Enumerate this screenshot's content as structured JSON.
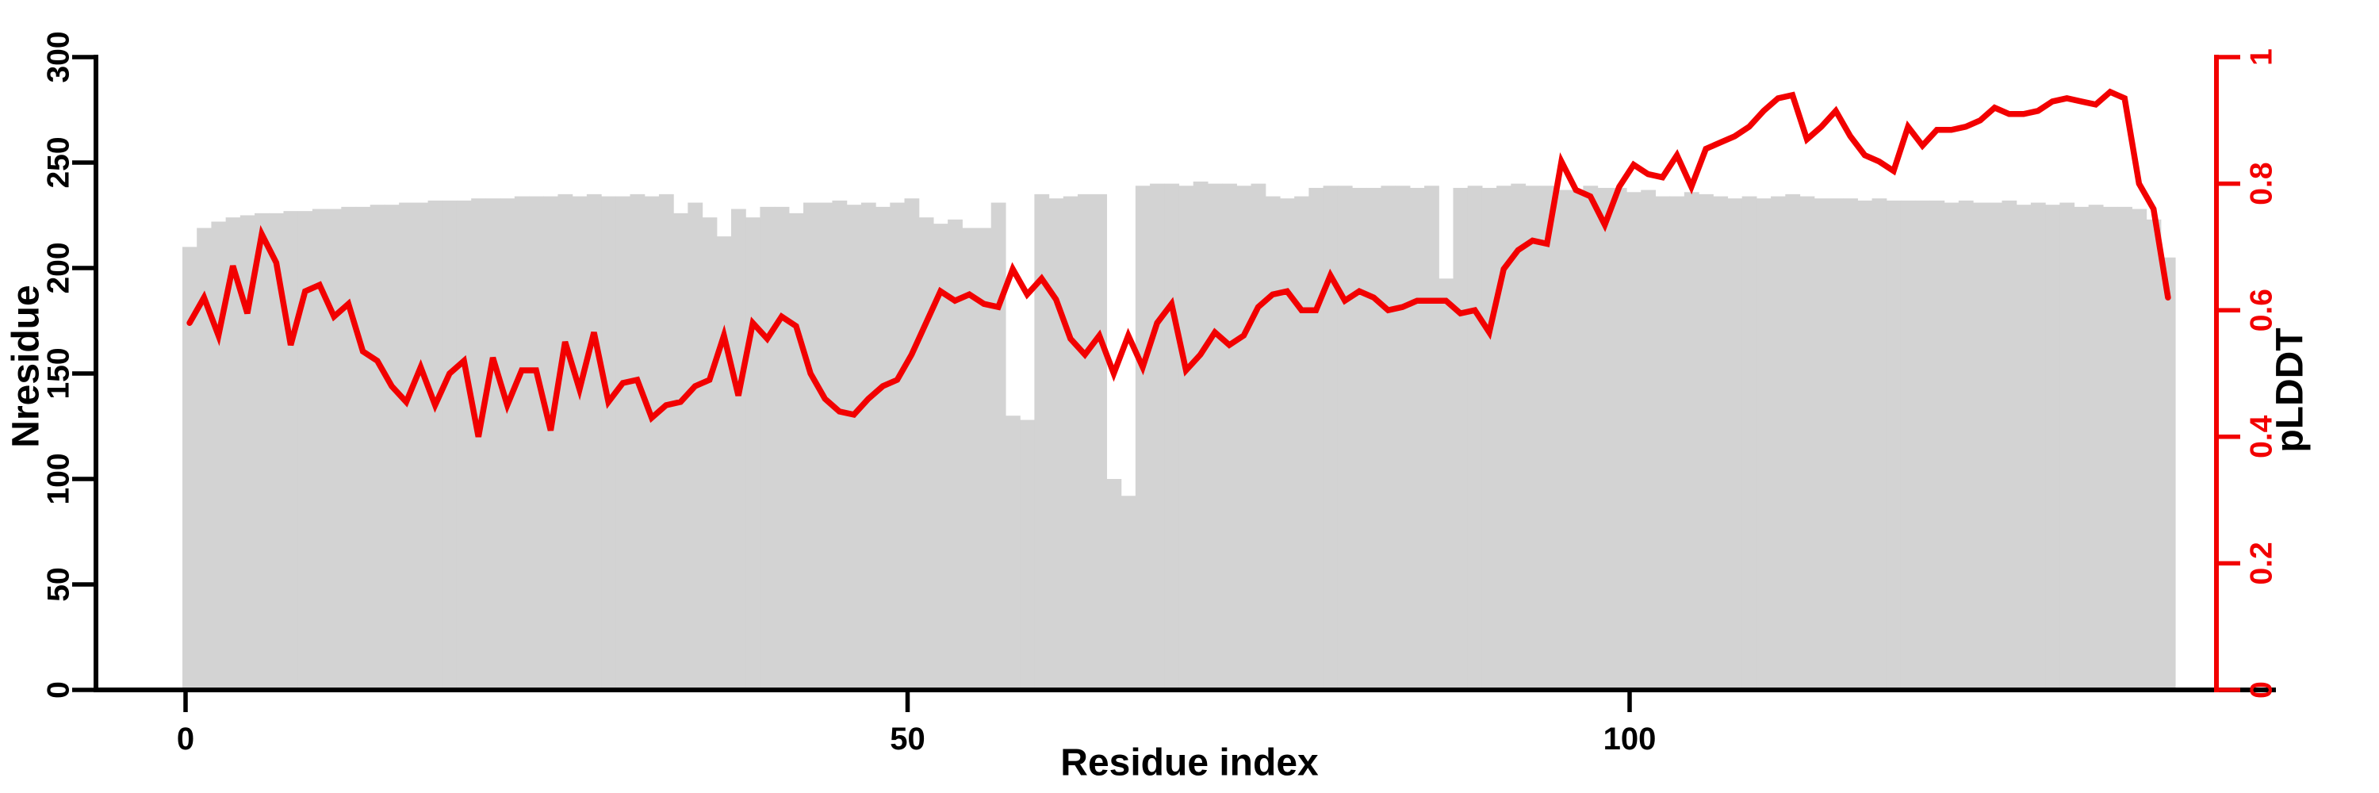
{
  "chart_data": {
    "type": "bar+line-dual-axis",
    "title": "",
    "xlabel": "Residue index",
    "ylabel_left": "Nresidue",
    "ylabel_right": "pLDDT",
    "x_ticks": [
      0,
      50,
      100
    ],
    "y_left_ticks": [
      0,
      50,
      100,
      150,
      200,
      250,
      300
    ],
    "y_left_range": [
      0,
      300
    ],
    "y_right_ticks": [
      0,
      0.2,
      0.4,
      0.6,
      0.8,
      1
    ],
    "y_right_range": [
      0,
      1
    ],
    "n_points": 138,
    "grid": false,
    "legend": "none",
    "bar_color": "#d3d3d3",
    "line_color": "#f20000",
    "axis_color": "#000000",
    "series": [
      {
        "name": "Nresidue",
        "axis": "left",
        "style": "bar",
        "values": [
          210,
          219,
          222,
          224,
          225,
          226,
          226,
          227,
          227,
          228,
          228,
          229,
          229,
          230,
          230,
          231,
          231,
          232,
          232,
          232,
          233,
          233,
          233,
          234,
          234,
          234,
          235,
          234,
          235,
          234,
          234,
          235,
          234,
          235,
          226,
          231,
          224,
          215,
          228,
          224,
          229,
          229,
          226,
          231,
          231,
          232,
          230,
          231,
          229,
          231,
          233,
          224,
          221,
          223,
          219,
          219,
          231,
          130,
          128,
          235,
          233,
          234,
          235,
          235,
          100,
          92,
          239,
          240,
          240,
          239,
          241,
          240,
          240,
          239,
          240,
          234,
          233,
          234,
          238,
          239,
          239,
          238,
          238,
          239,
          239,
          238,
          239,
          195,
          238,
          239,
          238,
          239,
          240,
          239,
          239,
          237,
          237,
          239,
          238,
          238,
          236,
          237,
          234,
          234,
          236,
          235,
          234,
          233,
          234,
          233,
          234,
          235,
          234,
          233,
          233,
          233,
          232,
          233,
          232,
          232,
          232,
          232,
          231,
          232,
          231,
          231,
          232,
          230,
          231,
          230,
          231,
          229,
          230,
          229,
          229,
          228,
          223,
          205
        ]
      },
      {
        "name": "pLDDT",
        "axis": "right",
        "style": "line",
        "values": [
          0.58,
          0.62,
          0.56,
          0.67,
          0.595,
          0.72,
          0.675,
          0.545,
          0.63,
          0.64,
          0.59,
          0.61,
          0.535,
          0.52,
          0.48,
          0.455,
          0.51,
          0.45,
          0.5,
          0.52,
          0.4,
          0.525,
          0.45,
          0.505,
          0.505,
          0.41,
          0.55,
          0.475,
          0.565,
          0.455,
          0.485,
          0.49,
          0.43,
          0.45,
          0.455,
          0.48,
          0.49,
          0.56,
          0.465,
          0.58,
          0.555,
          0.59,
          0.575,
          0.5,
          0.46,
          0.44,
          0.435,
          0.46,
          0.48,
          0.49,
          0.53,
          0.58,
          0.63,
          0.615,
          0.625,
          0.61,
          0.605,
          0.665,
          0.625,
          0.65,
          0.617,
          0.555,
          0.53,
          0.56,
          0.5,
          0.56,
          0.51,
          0.58,
          0.61,
          0.505,
          0.53,
          0.565,
          0.545,
          0.56,
          0.605,
          0.625,
          0.63,
          0.6,
          0.6,
          0.655,
          0.615,
          0.63,
          0.62,
          0.6,
          0.605,
          0.615,
          0.615,
          0.615,
          0.595,
          0.6,
          0.565,
          0.665,
          0.695,
          0.71,
          0.705,
          0.835,
          0.79,
          0.78,
          0.735,
          0.795,
          0.83,
          0.815,
          0.81,
          0.845,
          0.795,
          0.855,
          0.865,
          0.875,
          0.89,
          0.915,
          0.935,
          0.94,
          0.87,
          0.89,
          0.915,
          0.875,
          0.845,
          0.835,
          0.82,
          0.89,
          0.86,
          0.885,
          0.885,
          0.89,
          0.9,
          0.92,
          0.91,
          0.91,
          0.915,
          0.93,
          0.935,
          0.93,
          0.925,
          0.945,
          0.935,
          0.8,
          0.76,
          0.62
        ]
      }
    ]
  }
}
